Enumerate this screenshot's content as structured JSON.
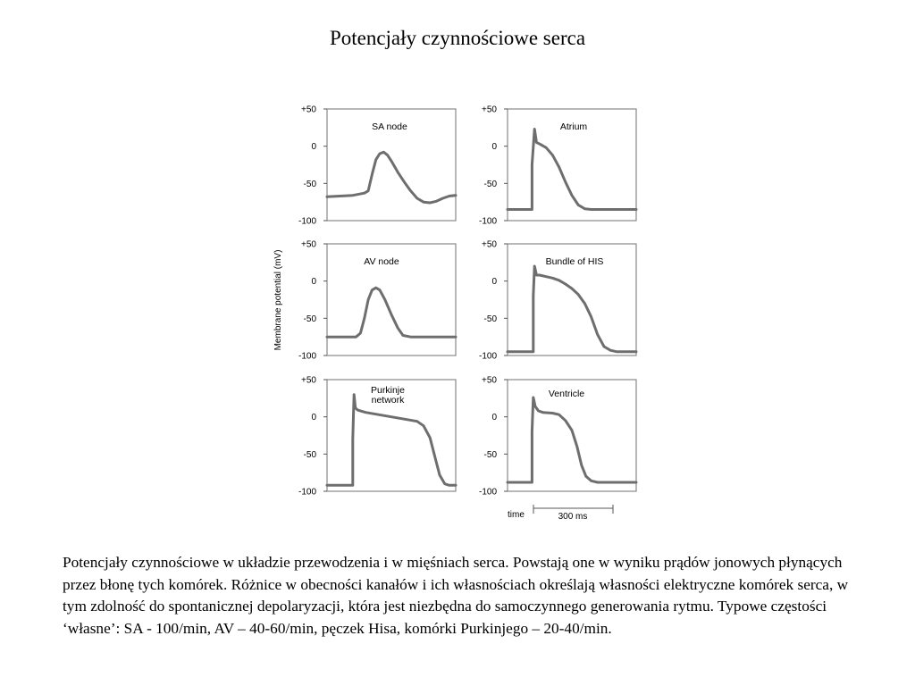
{
  "title": "Potencjały czynnościowe serca",
  "caption": "Potencjały czynnościowe w układzie przewodzenia i w mięśniach serca. Powstają one w wyniku prądów jonowych płynących przez błonę tych komórek. Różnice w obecności kanałów i ich własnościach określają własności elektryczne komórek serca, w tym zdolność do spontanicznej depolaryzacji, która jest niezbędna do samoczynnego generowania rytmu. Typowe częstości ‘własne’: SA - 100/min, AV – 40-60/min, pęczek Hisa, komórki Purkinjego – 20-40/min.",
  "colors": {
    "trace": "#6e6e6e",
    "frame": "#888888"
  },
  "chart_data": {
    "type": "line",
    "ylabel": "Membrane potential (mV)",
    "ylim": [
      -100,
      50
    ],
    "yticks": [
      "+50",
      "0",
      "-50",
      "-100"
    ],
    "scale_bar": {
      "label_left": "time",
      "label": "300 ms",
      "duration_ms": 300
    },
    "panels": [
      {
        "label": [
          "SA  node"
        ],
        "points": [
          [
            0,
            -68
          ],
          [
            20,
            -67
          ],
          [
            40,
            -66
          ],
          [
            58,
            -63
          ],
          [
            64,
            -60
          ],
          [
            70,
            -38
          ],
          [
            76,
            -18
          ],
          [
            82,
            -10
          ],
          [
            88,
            -8
          ],
          [
            94,
            -12
          ],
          [
            100,
            -20
          ],
          [
            110,
            -35
          ],
          [
            120,
            -48
          ],
          [
            130,
            -60
          ],
          [
            140,
            -70
          ],
          [
            150,
            -75
          ],
          [
            160,
            -76
          ],
          [
            170,
            -74
          ],
          [
            180,
            -70
          ],
          [
            190,
            -67
          ],
          [
            200,
            -66
          ]
        ]
      },
      {
        "label": [
          "Atrium"
        ],
        "points": [
          [
            0,
            -85
          ],
          [
            38,
            -85
          ],
          [
            38,
            -25
          ],
          [
            42,
            23
          ],
          [
            45,
            5
          ],
          [
            50,
            3
          ],
          [
            60,
            -2
          ],
          [
            70,
            -12
          ],
          [
            80,
            -28
          ],
          [
            90,
            -48
          ],
          [
            100,
            -66
          ],
          [
            110,
            -79
          ],
          [
            120,
            -84
          ],
          [
            130,
            -85
          ],
          [
            200,
            -85
          ]
        ]
      },
      {
        "label": [
          "AV node"
        ],
        "points": [
          [
            0,
            -75
          ],
          [
            45,
            -75
          ],
          [
            52,
            -70
          ],
          [
            58,
            -50
          ],
          [
            64,
            -25
          ],
          [
            70,
            -12
          ],
          [
            76,
            -9
          ],
          [
            82,
            -12
          ],
          [
            90,
            -25
          ],
          [
            100,
            -45
          ],
          [
            110,
            -63
          ],
          [
            118,
            -73
          ],
          [
            130,
            -75
          ],
          [
            200,
            -75
          ]
        ]
      },
      {
        "label": [
          "Bundle of HIS"
        ],
        "points": [
          [
            0,
            -95
          ],
          [
            40,
            -95
          ],
          [
            40,
            -20
          ],
          [
            42,
            20
          ],
          [
            45,
            8
          ],
          [
            50,
            8
          ],
          [
            60,
            6
          ],
          [
            70,
            4
          ],
          [
            80,
            1
          ],
          [
            90,
            -4
          ],
          [
            100,
            -10
          ],
          [
            110,
            -18
          ],
          [
            120,
            -30
          ],
          [
            130,
            -48
          ],
          [
            140,
            -72
          ],
          [
            150,
            -88
          ],
          [
            160,
            -93
          ],
          [
            170,
            -95
          ],
          [
            200,
            -95
          ]
        ]
      },
      {
        "label": [
          "Purkinje",
          "network"
        ],
        "points": [
          [
            0,
            -92
          ],
          [
            40,
            -92
          ],
          [
            40,
            -30
          ],
          [
            42,
            30
          ],
          [
            44,
            12
          ],
          [
            48,
            9
          ],
          [
            60,
            6
          ],
          [
            80,
            3
          ],
          [
            100,
            0
          ],
          [
            120,
            -3
          ],
          [
            140,
            -6
          ],
          [
            150,
            -12
          ],
          [
            160,
            -28
          ],
          [
            168,
            -55
          ],
          [
            175,
            -78
          ],
          [
            183,
            -90
          ],
          [
            190,
            -92
          ],
          [
            200,
            -92
          ]
        ]
      },
      {
        "label": [
          "Ventricle"
        ],
        "points": [
          [
            0,
            -88
          ],
          [
            38,
            -88
          ],
          [
            38,
            -20
          ],
          [
            40,
            26
          ],
          [
            43,
            14
          ],
          [
            48,
            8
          ],
          [
            55,
            6
          ],
          [
            70,
            5
          ],
          [
            80,
            3
          ],
          [
            90,
            -5
          ],
          [
            100,
            -18
          ],
          [
            108,
            -40
          ],
          [
            115,
            -65
          ],
          [
            122,
            -80
          ],
          [
            130,
            -86
          ],
          [
            140,
            -88
          ],
          [
            200,
            -88
          ]
        ]
      }
    ]
  }
}
